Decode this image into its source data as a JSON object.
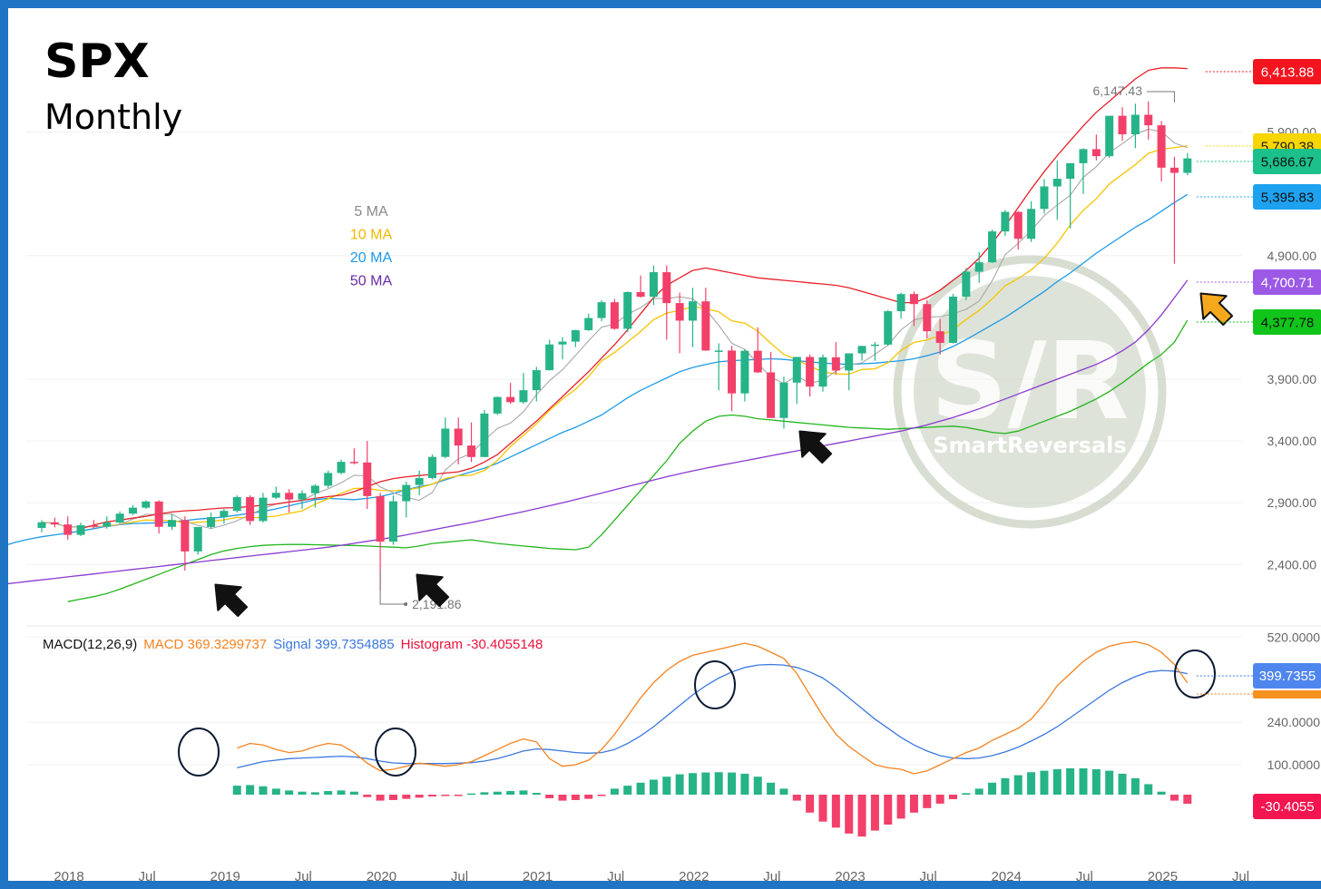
{
  "title": "SPX",
  "subtitle": "Monthly",
  "colors": {
    "up": "#26b388",
    "down": "#f2406a",
    "ma5": "#a8a8a8",
    "ma10": "#f5c400",
    "ma20": "#1e9ae8",
    "ma50": "#8a3ad0",
    "bb_upper": "#e8202a",
    "bb_lower": "#22b51c",
    "macd": "#f5821f",
    "signal": "#3b78e0",
    "hist_up": "#26b388",
    "hist_down": "#f2406a",
    "border": "#1f74c4"
  },
  "legend": [
    {
      "label": "5 MA",
      "color": "#8a8a8a"
    },
    {
      "label": "10 MA",
      "color": "#f0b800"
    },
    {
      "label": "20 MA",
      "color": "#1e9ae8"
    },
    {
      "label": "50 MA",
      "color": "#6a2aa8"
    }
  ],
  "price_axis": {
    "ticks": [
      "2,400.00",
      "2,900.00",
      "3,400.00",
      "3,900.00",
      "4,900.00",
      "5,900.00"
    ]
  },
  "price_badges": [
    {
      "name": "upper-bb",
      "label": "6,413.88",
      "bg": "#f2141e",
      "fg": "#ffffff"
    },
    {
      "name": "ma10",
      "label": "5,790.38",
      "bg": "#f7d600",
      "fg": "#222222"
    },
    {
      "name": "last-price",
      "label": "5,686.67",
      "bg": "#1cc08a",
      "fg": "#111111"
    },
    {
      "name": "ma20",
      "label": "5,395.83",
      "bg": "#1ea2f0",
      "fg": "#111111"
    },
    {
      "name": "ma50",
      "label": "4,700.71",
      "bg": "#9b59e6",
      "fg": "#ffffff"
    },
    {
      "name": "lower-bb",
      "label": "4,377.78",
      "bg": "#11c41a",
      "fg": "#111111"
    }
  ],
  "price_annotations": {
    "high": "6,147.43",
    "low": "2,191.86"
  },
  "time_axis": [
    "2018",
    "Jul",
    "2019",
    "Jul",
    "2020",
    "Jul",
    "2021",
    "Jul",
    "2022",
    "Jul",
    "2023",
    "Jul",
    "2024",
    "Jul",
    "2025",
    "Jul"
  ],
  "macd_header": {
    "name": "MACD(12,26,9)",
    "macd": "MACD 369.3299737",
    "signal": "Signal 399.7354885",
    "histogram": "Histogram -30.4055148"
  },
  "macd_axis": {
    "ticks": [
      "520.0000",
      "240.0000",
      "100.0000"
    ]
  },
  "macd_badges": {
    "signal": "399.7355",
    "histogram": "-30.4055"
  },
  "watermark": "SmartReversals",
  "chart_data": {
    "type": "candlestick",
    "title": "SPX",
    "subtitle": "Monthly",
    "x_start": "2018-01",
    "ohlc": [
      [
        2696,
        2760,
        2660,
        2742
      ],
      [
        2742,
        2780,
        2700,
        2724
      ],
      [
        2724,
        2790,
        2600,
        2640
      ],
      [
        2640,
        2740,
        2630,
        2718
      ],
      [
        2718,
        2760,
        2690,
        2706
      ],
      [
        2706,
        2790,
        2690,
        2740
      ],
      [
        2740,
        2830,
        2730,
        2812
      ],
      [
        2812,
        2880,
        2800,
        2860
      ],
      [
        2860,
        2920,
        2850,
        2910
      ],
      [
        2910,
        2920,
        2650,
        2705
      ],
      [
        2705,
        2810,
        2680,
        2760
      ],
      [
        2760,
        2790,
        2350,
        2506
      ],
      [
        2506,
        2700,
        2480,
        2704
      ],
      [
        2704,
        2820,
        2690,
        2784
      ],
      [
        2784,
        2850,
        2730,
        2834
      ],
      [
        2834,
        2960,
        2820,
        2946
      ],
      [
        2946,
        2960,
        2720,
        2752
      ],
      [
        2752,
        2980,
        2740,
        2941
      ],
      [
        2941,
        3030,
        2930,
        2980
      ],
      [
        2980,
        3010,
        2820,
        2926
      ],
      [
        2926,
        3000,
        2850,
        2977
      ],
      [
        2977,
        3050,
        2860,
        3038
      ],
      [
        3038,
        3160,
        3020,
        3141
      ],
      [
        3141,
        3250,
        3130,
        3231
      ],
      [
        3231,
        3340,
        3210,
        3226
      ],
      [
        3226,
        3400,
        2850,
        2954
      ],
      [
        2954,
        2980,
        2191,
        2585
      ],
      [
        2585,
        2960,
        2560,
        2912
      ],
      [
        2912,
        3070,
        2780,
        3044
      ],
      [
        3044,
        3160,
        2960,
        3100
      ],
      [
        3100,
        3290,
        3090,
        3271
      ],
      [
        3271,
        3590,
        3260,
        3500
      ],
      [
        3500,
        3590,
        3210,
        3363
      ],
      [
        3363,
        3550,
        3230,
        3270
      ],
      [
        3270,
        3650,
        3270,
        3622
      ],
      [
        3622,
        3760,
        3610,
        3756
      ],
      [
        3756,
        3870,
        3700,
        3714
      ],
      [
        3714,
        3950,
        3700,
        3811
      ],
      [
        3811,
        4000,
        3720,
        3973
      ],
      [
        3973,
        4220,
        3970,
        4181
      ],
      [
        4181,
        4240,
        4060,
        4204
      ],
      [
        4204,
        4300,
        4160,
        4297
      ],
      [
        4297,
        4430,
        4290,
        4395
      ],
      [
        4395,
        4540,
        4370,
        4523
      ],
      [
        4523,
        4550,
        4300,
        4308
      ],
      [
        4308,
        4610,
        4280,
        4605
      ],
      [
        4605,
        4740,
        4560,
        4567
      ],
      [
        4567,
        4820,
        4500,
        4766
      ],
      [
        4766,
        4820,
        4220,
        4516
      ],
      [
        4516,
        4600,
        4110,
        4374
      ],
      [
        4374,
        4640,
        4160,
        4530
      ],
      [
        4530,
        4640,
        4130,
        4132
      ],
      [
        4132,
        4190,
        3810,
        4132
      ],
      [
        4132,
        4170,
        3640,
        3785
      ],
      [
        3785,
        4140,
        3720,
        4130
      ],
      [
        4130,
        4320,
        3950,
        3955
      ],
      [
        3955,
        4120,
        3590,
        3586
      ],
      [
        3586,
        3920,
        3500,
        3872
      ],
      [
        3872,
        4080,
        3700,
        4080
      ],
      [
        4080,
        4100,
        3760,
        3840
      ],
      [
        3840,
        4100,
        3800,
        4077
      ],
      [
        4077,
        4200,
        3940,
        3970
      ],
      [
        3970,
        4080,
        3810,
        4109
      ],
      [
        4109,
        4170,
        4050,
        4169
      ],
      [
        4169,
        4200,
        4050,
        4180
      ],
      [
        4180,
        4460,
        4170,
        4450
      ],
      [
        4450,
        4600,
        4390,
        4589
      ],
      [
        4589,
        4610,
        4330,
        4508
      ],
      [
        4508,
        4540,
        4230,
        4288
      ],
      [
        4288,
        4390,
        4100,
        4194
      ],
      [
        4194,
        4590,
        4190,
        4568
      ],
      [
        4568,
        4800,
        4540,
        4770
      ],
      [
        4770,
        4930,
        4680,
        4846
      ],
      [
        4846,
        5110,
        4840,
        5096
      ],
      [
        5096,
        5270,
        5060,
        5254
      ],
      [
        5254,
        5260,
        4950,
        5036
      ],
      [
        5036,
        5340,
        5010,
        5278
      ],
      [
        5278,
        5520,
        5240,
        5460
      ],
      [
        5460,
        5670,
        5190,
        5522
      ],
      [
        5522,
        5650,
        5120,
        5648
      ],
      [
        5648,
        5770,
        5400,
        5762
      ],
      [
        5762,
        5880,
        5670,
        5705
      ],
      [
        5705,
        6030,
        5690,
        6032
      ],
      [
        6032,
        6100,
        5830,
        5882
      ],
      [
        5882,
        6130,
        5770,
        6040
      ],
      [
        6040,
        6147,
        5840,
        5955
      ],
      [
        5955,
        5990,
        5500,
        5612
      ],
      [
        5612,
        5700,
        4835,
        5570
      ],
      [
        5570,
        5730,
        5550,
        5687
      ]
    ],
    "ma5_label": "5 MA",
    "ma10_label": "10 MA",
    "ma20_label": "20 MA",
    "ma50_label": "50 MA",
    "ma20": [
      2550,
      2580,
      2605,
      2625,
      2640,
      2655,
      2672,
      2690,
      2710,
      2722,
      2732,
      2735,
      2738,
      2745,
      2755,
      2768,
      2775,
      2785,
      2800,
      2815,
      2830,
      2850,
      2875,
      2900,
      2925,
      2935,
      2930,
      2925,
      2935,
      2950,
      2975,
      3005,
      3030,
      3050,
      3085,
      3120,
      3150,
      3180,
      3220,
      3270,
      3320,
      3370,
      3420,
      3470,
      3510,
      3560,
      3610,
      3680,
      3750,
      3810,
      3860,
      3910,
      3960,
      3995,
      4020,
      4040,
      4050,
      4055,
      4060,
      4065,
      4060,
      4050,
      4040,
      4030,
      4025,
      4020,
      4025,
      4030,
      4040,
      4050,
      4065,
      4090,
      4120,
      4165,
      4220,
      4280,
      4340,
      4400,
      4470,
      4540,
      4610,
      4690,
      4760,
      4840,
      4920,
      4990,
      5060,
      5130,
      5190,
      5260,
      5330,
      5395.83
    ],
    "ma50": [
      2240,
      2252,
      2264,
      2276,
      2288,
      2300,
      2312,
      2324,
      2336,
      2348,
      2360,
      2372,
      2384,
      2396,
      2408,
      2420,
      2432,
      2444,
      2456,
      2468,
      2480,
      2492,
      2504,
      2516,
      2528,
      2540,
      2556,
      2572,
      2588,
      2604,
      2620,
      2640,
      2660,
      2680,
      2700,
      2720,
      2740,
      2762,
      2784,
      2806,
      2828,
      2852,
      2876,
      2900,
      2926,
      2952,
      2978,
      3005,
      3032,
      3058,
      3084,
      3110,
      3134,
      3158,
      3180,
      3200,
      3220,
      3240,
      3260,
      3280,
      3300,
      3320,
      3340,
      3360,
      3380,
      3400,
      3420,
      3440,
      3460,
      3480,
      3505,
      3530,
      3560,
      3590,
      3625,
      3660,
      3700,
      3740,
      3780,
      3820,
      3860,
      3900,
      3940,
      3980,
      4020,
      4070,
      4130,
      4200,
      4300,
      4420,
      4560,
      4700.71
    ],
    "bb_upper": [
      2690,
      2720,
      2745,
      2760,
      2775,
      2790,
      2810,
      2825,
      2835,
      2840,
      2850,
      2858,
      2860,
      2870,
      2880,
      2890,
      2905,
      2920,
      2935,
      2950,
      2960,
      2990,
      3030,
      3070,
      3095,
      3110,
      3120,
      3130,
      3140,
      3150,
      3180,
      3230,
      3290,
      3380,
      3470,
      3560,
      3660,
      3760,
      3860,
      3960,
      4070,
      4180,
      4300,
      4430,
      4560,
      4660,
      4720,
      4780,
      4800,
      4780,
      4760,
      4740,
      4720,
      4710,
      4700,
      4690,
      4680,
      4670,
      4660,
      4640,
      4610,
      4580,
      4550,
      4520,
      4520,
      4560,
      4620,
      4700,
      4780,
      4880,
      5000,
      5140,
      5290,
      5440,
      5580,
      5710,
      5830,
      5950,
      6060,
      6150,
      6240,
      6330,
      6400,
      6420,
      6420,
      6413.88
    ],
    "bb_lower": [
      2100,
      2120,
      2140,
      2165,
      2200,
      2240,
      2280,
      2320,
      2360,
      2400,
      2440,
      2480,
      2510,
      2530,
      2545,
      2555,
      2560,
      2562,
      2562,
      2560,
      2558,
      2556,
      2554,
      2550,
      2545,
      2540,
      2535,
      2550,
      2570,
      2580,
      2590,
      2600,
      2585,
      2570,
      2560,
      2550,
      2540,
      2530,
      2525,
      2520,
      2540,
      2640,
      2760,
      2880,
      3000,
      3120,
      3240,
      3380,
      3480,
      3560,
      3600,
      3610,
      3600,
      3580,
      3570,
      3560,
      3550,
      3540,
      3530,
      3520,
      3510,
      3505,
      3500,
      3495,
      3500,
      3505,
      3510,
      3515,
      3520,
      3510,
      3490,
      3470,
      3460,
      3480,
      3520,
      3560,
      3600,
      3640,
      3690,
      3740,
      3800,
      3870,
      3950,
      4030,
      4100,
      4200,
      4377.78
    ],
    "macd": [
      155,
      170,
      165,
      150,
      140,
      145,
      160,
      170,
      165,
      140,
      105,
      80,
      85,
      95,
      105,
      100,
      95,
      100,
      110,
      130,
      150,
      170,
      185,
      175,
      120,
      95,
      100,
      115,
      150,
      200,
      260,
      320,
      370,
      410,
      440,
      460,
      470,
      480,
      490,
      500,
      490,
      470,
      450,
      400,
      330,
      260,
      200,
      160,
      130,
      100,
      90,
      85,
      70,
      80,
      100,
      120,
      140,
      155,
      180,
      200,
      220,
      250,
      300,
      360,
      400,
      440,
      470,
      490,
      500,
      505,
      495,
      470,
      430,
      369.33
    ],
    "signal": [
      90,
      100,
      110,
      115,
      120,
      122,
      124,
      126,
      128,
      126,
      120,
      112,
      106,
      104,
      104,
      104,
      104,
      105,
      107,
      112,
      120,
      132,
      145,
      152,
      150,
      145,
      140,
      138,
      140,
      150,
      170,
      195,
      225,
      260,
      295,
      330,
      360,
      385,
      405,
      420,
      428,
      430,
      428,
      420,
      405,
      385,
      355,
      320,
      285,
      250,
      220,
      190,
      165,
      145,
      130,
      122,
      120,
      122,
      130,
      142,
      158,
      178,
      200,
      225,
      255,
      285,
      315,
      345,
      370,
      390,
      405,
      410,
      408,
      399.74
    ],
    "histogram": [
      30,
      32,
      28,
      20,
      14,
      10,
      8,
      12,
      14,
      10,
      -8,
      -20,
      -18,
      -14,
      -10,
      -6,
      -4,
      -2,
      4,
      8,
      10,
      12,
      14,
      6,
      -12,
      -20,
      -18,
      -14,
      -2,
      20,
      30,
      40,
      50,
      60,
      68,
      72,
      74,
      75,
      74,
      70,
      60,
      40,
      20,
      -20,
      -60,
      -90,
      -110,
      -130,
      -140,
      -120,
      -100,
      -80,
      -60,
      -45,
      -30,
      -15,
      5,
      20,
      40,
      55,
      65,
      75,
      80,
      85,
      88,
      88,
      85,
      80,
      70,
      55,
      35,
      10,
      -20,
      -30.41
    ],
    "price_axis_ticks": [
      2400,
      2900,
      3400,
      3900,
      4900,
      5900
    ],
    "macd_axis_ticks": [
      520,
      240,
      100
    ]
  }
}
